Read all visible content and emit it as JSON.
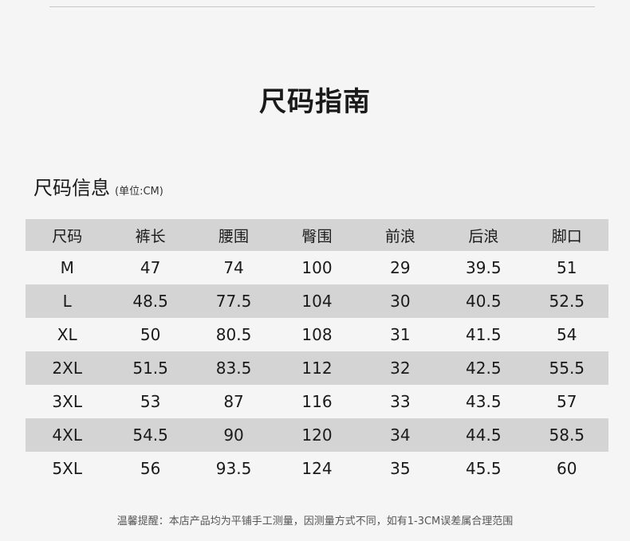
{
  "title": "尺码指南",
  "section": {
    "title": "尺码信息",
    "unit": "(单位:CM)"
  },
  "table": {
    "headers": [
      "尺码",
      "裤长",
      "腰围",
      "臀围",
      "前浪",
      "后浪",
      "脚口"
    ],
    "rows": [
      [
        "M",
        "47",
        "74",
        "100",
        "29",
        "39.5",
        "51"
      ],
      [
        "L",
        "48.5",
        "77.5",
        "104",
        "30",
        "40.5",
        "52.5"
      ],
      [
        "XL",
        "50",
        "80.5",
        "108",
        "31",
        "41.5",
        "54"
      ],
      [
        "2XL",
        "51.5",
        "83.5",
        "112",
        "32",
        "42.5",
        "55.5"
      ],
      [
        "3XL",
        "53",
        "87",
        "116",
        "33",
        "43.5",
        "57"
      ],
      [
        "4XL",
        "54.5",
        "90",
        "120",
        "34",
        "44.5",
        "58.5"
      ],
      [
        "5XL",
        "56",
        "93.5",
        "124",
        "35",
        "45.5",
        "60"
      ]
    ]
  },
  "note": "温馨提醒：本店产品均为平铺手工测量，因测量方式不同，如有1-3CM误差属合理范围"
}
